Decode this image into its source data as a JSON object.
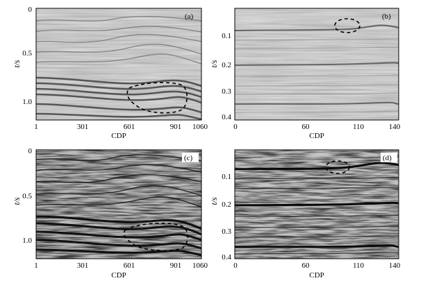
{
  "panels": [
    {
      "id": "a",
      "label": "(a)",
      "xlabel": "CDP",
      "ylabel": "t/s",
      "xticks": [
        "1",
        "301",
        "601",
        "901",
        "1060"
      ],
      "yticks": [
        "0",
        "0.5",
        "1.0"
      ],
      "style": "mild",
      "section": "left"
    },
    {
      "id": "b",
      "label": "(b)",
      "xlabel": "CDP",
      "ylabel": "t/s",
      "xticks": [
        "0",
        "60",
        "110",
        "140"
      ],
      "yticks": [
        "0.1",
        "0.2",
        "0.3",
        "0.4"
      ],
      "style": "mild",
      "section": "right"
    },
    {
      "id": "c",
      "label": "(c)",
      "xlabel": "CDP",
      "ylabel": "t/s",
      "xticks": [
        "1",
        "301",
        "601",
        "901",
        "1060"
      ],
      "yticks": [
        "0",
        "0.5",
        "1.0"
      ],
      "style": "strong",
      "section": "left"
    },
    {
      "id": "d",
      "label": "(d)",
      "xlabel": "CDP",
      "ylabel": "t/s",
      "xticks": [
        "0",
        "60",
        "110",
        "140"
      ],
      "yticks": [
        "0.1",
        "0.2",
        "0.3",
        "0.4"
      ],
      "style": "strong",
      "section": "right"
    }
  ],
  "colors": {
    "background": "#ffffff",
    "frame": "#000000",
    "mild_base": "#d6d6d6",
    "strong_base": "#bdbdbd",
    "event_mild": "#6a6a6a",
    "event_strong": "#111111",
    "annotation": "#000000"
  }
}
